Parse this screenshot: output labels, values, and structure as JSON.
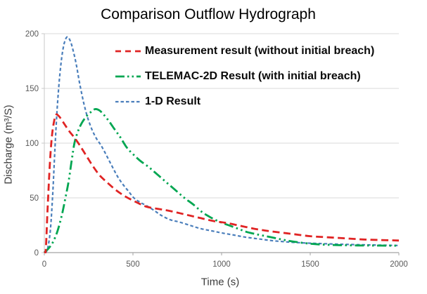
{
  "page": {
    "background": "#ffffff"
  },
  "chart_data": {
    "type": "line",
    "title": "Comparison Outflow Hydrograph",
    "xlabel": "Time (s)",
    "ylabel": "Discharge (m³/S)",
    "xlim": [
      0,
      2000
    ],
    "ylim": [
      0,
      200
    ],
    "xticks": [
      0,
      500,
      1000,
      1500,
      2000
    ],
    "yticks": [
      0,
      50,
      100,
      150,
      200
    ],
    "grid": "horizontal",
    "legend_position": "inside-top-left",
    "colors": {
      "grid": "#d9d9d9",
      "x_axis": "#a3a3a3",
      "y_axis": "#c9c9c9",
      "tick_text": "#595959",
      "title_text": "#000000"
    },
    "series": [
      {
        "name": "Measurement result (without initial breach)",
        "color": "#e02424",
        "dash": "dashed",
        "points": [
          [
            0,
            0
          ],
          [
            8,
            2
          ],
          [
            18,
            38
          ],
          [
            30,
            78
          ],
          [
            42,
            105
          ],
          [
            55,
            120
          ],
          [
            67,
            126
          ],
          [
            80,
            125
          ],
          [
            95,
            122
          ],
          [
            115,
            117
          ],
          [
            140,
            111
          ],
          [
            170,
            105
          ],
          [
            200,
            98
          ],
          [
            235,
            89
          ],
          [
            270,
            80
          ],
          [
            310,
            71
          ],
          [
            355,
            64
          ],
          [
            405,
            57
          ],
          [
            460,
            51
          ],
          [
            520,
            46
          ],
          [
            575,
            42
          ],
          [
            640,
            40
          ],
          [
            710,
            38
          ],
          [
            790,
            35
          ],
          [
            870,
            32
          ],
          [
            950,
            29
          ],
          [
            1030,
            27
          ],
          [
            1120,
            24
          ],
          [
            1210,
            21
          ],
          [
            1300,
            19
          ],
          [
            1400,
            17
          ],
          [
            1500,
            15
          ],
          [
            1600,
            14
          ],
          [
            1700,
            13
          ],
          [
            1800,
            12
          ],
          [
            1900,
            11.5
          ],
          [
            2000,
            11
          ]
        ]
      },
      {
        "name": "TELEMAC-2D Result (with initial breach)",
        "color": "#00a651",
        "dash": "dash-dot-dot",
        "points": [
          [
            0,
            0
          ],
          [
            25,
            4
          ],
          [
            50,
            10
          ],
          [
            75,
            20
          ],
          [
            100,
            35
          ],
          [
            119,
            50
          ],
          [
            138,
            66
          ],
          [
            155,
            85
          ],
          [
            170,
            100
          ],
          [
            188,
            110
          ],
          [
            210,
            118
          ],
          [
            235,
            124
          ],
          [
            260,
            128
          ],
          [
            285,
            131
          ],
          [
            310,
            130
          ],
          [
            335,
            126
          ],
          [
            365,
            120
          ],
          [
            395,
            113
          ],
          [
            430,
            105
          ],
          [
            465,
            96
          ],
          [
            500,
            90
          ],
          [
            540,
            84
          ],
          [
            590,
            78
          ],
          [
            640,
            71
          ],
          [
            690,
            64
          ],
          [
            740,
            57
          ],
          [
            790,
            50
          ],
          [
            840,
            44
          ],
          [
            890,
            37
          ],
          [
            940,
            32
          ],
          [
            990,
            28
          ],
          [
            1040,
            25
          ],
          [
            1090,
            22
          ],
          [
            1140,
            19
          ],
          [
            1190,
            17
          ],
          [
            1250,
            15
          ],
          [
            1310,
            13
          ],
          [
            1370,
            11
          ],
          [
            1430,
            9.5
          ],
          [
            1490,
            8.3
          ],
          [
            1550,
            7.5
          ],
          [
            1620,
            7
          ],
          [
            1700,
            6.7
          ],
          [
            1800,
            6.5
          ],
          [
            1900,
            6.4
          ],
          [
            2000,
            6.3
          ]
        ]
      },
      {
        "name": "1-D Result",
        "color": "#4a7ebb",
        "dash": "short-dash",
        "points": [
          [
            0,
            0
          ],
          [
            12,
            1
          ],
          [
            22,
            6
          ],
          [
            35,
            22
          ],
          [
            48,
            55
          ],
          [
            60,
            95
          ],
          [
            72,
            130
          ],
          [
            85,
            158
          ],
          [
            98,
            178
          ],
          [
            112,
            191
          ],
          [
            128,
            197
          ],
          [
            145,
            194
          ],
          [
            162,
            185
          ],
          [
            180,
            172
          ],
          [
            200,
            154
          ],
          [
            222,
            137
          ],
          [
            245,
            123
          ],
          [
            270,
            112
          ],
          [
            295,
            104
          ],
          [
            320,
            98
          ],
          [
            350,
            89
          ],
          [
            385,
            78
          ],
          [
            415,
            69
          ],
          [
            445,
            62
          ],
          [
            475,
            56
          ],
          [
            505,
            50
          ],
          [
            540,
            46
          ],
          [
            575,
            43
          ],
          [
            615,
            39
          ],
          [
            660,
            34
          ],
          [
            710,
            30
          ],
          [
            760,
            28
          ],
          [
            820,
            25
          ],
          [
            880,
            22
          ],
          [
            940,
            20
          ],
          [
            1000,
            18
          ],
          [
            1070,
            16
          ],
          [
            1140,
            14
          ],
          [
            1210,
            12.5
          ],
          [
            1280,
            11
          ],
          [
            1350,
            10
          ],
          [
            1420,
            9.2
          ],
          [
            1500,
            8.6
          ],
          [
            1600,
            8
          ],
          [
            1700,
            7.5
          ],
          [
            1800,
            7.1
          ],
          [
            1900,
            6.8
          ],
          [
            2000,
            6.5
          ]
        ]
      }
    ]
  }
}
